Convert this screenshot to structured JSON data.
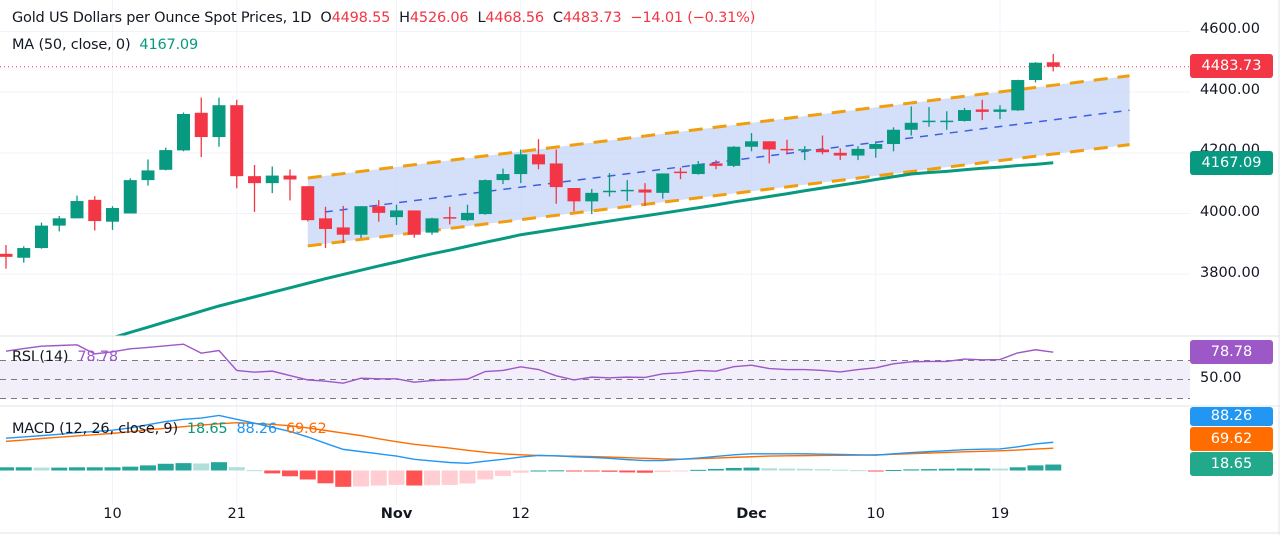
{
  "header": {
    "symbol_title": "Gold US Dollars per Ounce Spot Prices, 1D",
    "open_label": "O",
    "open": "4498.55",
    "high_label": "H",
    "high": "4526.06",
    "low_label": "L",
    "low": "4468.56",
    "close_label": "C",
    "close": "4483.73",
    "change": "−14.01 (−0.31%)",
    "ma_label": "MA (50, close, 0)",
    "ma_value": "4167.09"
  },
  "indicators": {
    "rsi_label": "RSI (14)",
    "rsi_value": "78.78",
    "macd_label": "MACD (12, 26, close, 9)",
    "macd_hist_value": "18.65",
    "macd_value": "88.26",
    "macd_signal_value": "69.62"
  },
  "price_axis": {
    "ticks": [
      "4600.00",
      "4400.00",
      "4200.00",
      "4000.00",
      "3800.00"
    ],
    "last_price": "4483.73",
    "ma_price": "4167.09",
    "rsi_ticks": [
      "50.00"
    ],
    "rsi_last": "78.78",
    "macd_last": "88.26",
    "signal_last": "69.62",
    "hist_last": "18.65"
  },
  "time_axis": {
    "ticks": [
      {
        "label": "10",
        "bar": 6,
        "bold": false
      },
      {
        "label": "21",
        "bar": 13,
        "bold": false
      },
      {
        "label": "Nov",
        "bar": 22,
        "bold": true
      },
      {
        "label": "12",
        "bar": 29,
        "bold": false
      },
      {
        "label": "Dec",
        "bar": 42,
        "bold": true
      },
      {
        "label": "10",
        "bar": 49,
        "bold": false
      },
      {
        "label": "19",
        "bar": 56,
        "bold": false
      }
    ]
  },
  "colors": {
    "up": "#089981",
    "down": "#f23645",
    "ma": "#089981",
    "rsi": "#9c58c7",
    "macd": "#2196f3",
    "signal": "#ff6d00",
    "channel_fill": "#c6d4f8",
    "channel_edge": "#f29d0c",
    "channel_mid": "#3d5fe0"
  },
  "chart_data": [
    {
      "type": "candlestick",
      "price_range": [
        3700,
        4650
      ],
      "grid": true,
      "ohlc": [
        [
          3867,
          3896,
          3818,
          3857
        ],
        [
          3854,
          3892,
          3838,
          3886
        ],
        [
          3886,
          3970,
          3884,
          3960
        ],
        [
          3960,
          3992,
          3941,
          3984
        ],
        [
          3984,
          4059,
          3984,
          4041
        ],
        [
          4045,
          4057,
          3944,
          3975
        ],
        [
          3973,
          4024,
          3946,
          4018
        ],
        [
          4000,
          4116,
          4000,
          4110
        ],
        [
          4110,
          4178,
          4092,
          4142
        ],
        [
          4144,
          4217,
          4142,
          4209
        ],
        [
          4208,
          4333,
          4205,
          4328
        ],
        [
          4332,
          4382,
          4186,
          4252
        ],
        [
          4252,
          4382,
          4220,
          4357
        ],
        [
          4357,
          4375,
          4083,
          4123
        ],
        [
          4123,
          4160,
          4005,
          4100
        ],
        [
          4100,
          4155,
          4067,
          4125
        ],
        [
          4125,
          4145,
          4043,
          4112
        ],
        [
          4090,
          4090,
          3974,
          3978
        ],
        [
          3984,
          4022,
          3886,
          3949
        ],
        [
          3954,
          4025,
          3903,
          3930
        ],
        [
          3930,
          4024,
          3919,
          4024
        ],
        [
          4024,
          4044,
          3973,
          4002
        ],
        [
          3988,
          4029,
          3962,
          4010
        ],
        [
          4010,
          4010,
          3920,
          3930
        ],
        [
          3937,
          3986,
          3930,
          3984
        ],
        [
          3988,
          4022,
          3964,
          3984
        ],
        [
          3978,
          4029,
          3975,
          4002
        ],
        [
          3998,
          4112,
          3996,
          4110
        ],
        [
          4110,
          4148,
          4097,
          4130
        ],
        [
          4130,
          4211,
          4100,
          4195
        ],
        [
          4195,
          4245,
          4146,
          4162
        ],
        [
          4165,
          4211,
          4032,
          4087
        ],
        [
          4084,
          4084,
          4007,
          4040
        ],
        [
          4040,
          4081,
          3998,
          4068
        ],
        [
          4070,
          4133,
          4056,
          4075
        ],
        [
          4076,
          4110,
          4041,
          4078
        ],
        [
          4079,
          4100,
          4025,
          4069
        ],
        [
          4068,
          4132,
          4049,
          4132
        ],
        [
          4138,
          4151,
          4113,
          4135
        ],
        [
          4130,
          4173,
          4128,
          4162
        ],
        [
          4165,
          4176,
          4146,
          4157
        ],
        [
          4157,
          4222,
          4153,
          4220
        ],
        [
          4220,
          4265,
          4205,
          4238
        ],
        [
          4238,
          4238,
          4165,
          4211
        ],
        [
          4213,
          4243,
          4195,
          4209
        ],
        [
          4208,
          4222,
          4176,
          4212
        ],
        [
          4211,
          4257,
          4195,
          4202
        ],
        [
          4200,
          4215,
          4176,
          4191
        ],
        [
          4191,
          4222,
          4176,
          4213
        ],
        [
          4213,
          4238,
          4184,
          4229
        ],
        [
          4229,
          4284,
          4205,
          4276
        ],
        [
          4276,
          4353,
          4257,
          4299
        ],
        [
          4303,
          4351,
          4286,
          4306
        ],
        [
          4303,
          4337,
          4276,
          4306
        ],
        [
          4305,
          4348,
          4303,
          4341
        ],
        [
          4343,
          4375,
          4308,
          4335
        ],
        [
          4335,
          4357,
          4311,
          4343
        ],
        [
          4340,
          4441,
          4338,
          4440
        ],
        [
          4440,
          4499,
          4432,
          4497
        ],
        [
          4498.55,
          4526.06,
          4468.56,
          4483.73
        ]
      ],
      "ma50": [
        null,
        null,
        null,
        null,
        null,
        null,
        3590,
        3608,
        3625,
        3643,
        3660,
        3678,
        3695,
        3710,
        3725,
        3740,
        3755,
        3770,
        3785,
        3799,
        3813,
        3827,
        3840,
        3854,
        3867,
        3879,
        3892,
        3905,
        3917,
        3930,
        3939,
        3948,
        3957,
        3966,
        3975,
        3984,
        3992,
        4001,
        4010,
        4019,
        4028,
        4038,
        4047,
        4056,
        4065,
        4075,
        4084,
        4093,
        4102,
        4112,
        4121,
        4130,
        4135,
        4139,
        4144,
        4149,
        4153,
        4158,
        4162,
        4167.09
      ],
      "channel": {
        "upper": [
          [
            17,
            4117
          ],
          [
            63.3,
            4454
          ]
        ],
        "lower": [
          [
            17,
            3893
          ],
          [
            63.3,
            4227
          ]
        ]
      }
    },
    {
      "type": "line",
      "indicator": "RSI",
      "range": [
        0,
        100
      ],
      "levels": [
        70,
        50,
        30
      ],
      "values": [
        79.8,
        82.6,
        85.1,
        85.8,
        86.5,
        77,
        79.1,
        82.3,
        83.7,
        85.5,
        87.2,
        77.7,
        80.5,
        59.5,
        57.7,
        58.8,
        54.2,
        49.6,
        48.2,
        46.1,
        51.4,
        50.7,
        50.7,
        47.2,
        48.9,
        49.6,
        50.4,
        58.4,
        59.5,
        63.3,
        60.5,
        53.9,
        49.6,
        52.5,
        51.8,
        52.5,
        52.2,
        56,
        57,
        59.5,
        58.8,
        63.5,
        65.1,
        61.5,
        60.5,
        60.5,
        59.5,
        58,
        60.5,
        62.3,
        66.5,
        68.6,
        69,
        69,
        71.5,
        70.7,
        71,
        78,
        81.3,
        78.78
      ]
    },
    {
      "type": "line+bar",
      "indicator": "MACD",
      "macd": [
        101,
        105,
        109,
        113,
        118,
        122,
        126,
        133,
        143,
        153,
        160,
        164,
        172,
        160,
        148,
        135,
        122,
        105,
        85,
        66,
        59,
        52,
        45,
        35,
        30,
        25,
        22.4,
        29,
        35,
        42,
        47,
        46,
        43,
        41,
        38,
        34,
        31,
        31,
        35,
        39,
        44,
        49,
        52,
        52,
        52,
        52,
        51,
        50,
        49,
        48,
        52,
        56,
        59,
        62,
        65,
        66.5,
        67.5,
        74,
        83,
        88.26
      ],
      "signal": [
        91,
        95,
        100,
        104,
        108,
        112,
        116,
        121,
        127,
        132,
        137,
        142,
        146,
        149.5,
        147,
        144,
        140,
        133,
        125,
        117,
        109,
        99,
        90,
        82,
        76,
        70,
        63,
        57,
        52,
        49,
        47,
        45.5,
        44.5,
        43.6,
        42,
        40,
        38,
        36,
        35.5,
        37,
        39,
        41,
        43,
        45,
        46,
        46.5,
        47,
        47.5,
        48,
        48.8,
        50.5,
        52.5,
        54.5,
        56.5,
        58.5,
        60,
        61.5,
        64,
        67,
        69.62
      ],
      "histogram": [
        10,
        10,
        9,
        9,
        10,
        10,
        10,
        12,
        16,
        21,
        23,
        22,
        26,
        10.5,
        1,
        -9,
        -18,
        -28,
        -40,
        -51,
        -50,
        -47,
        -45,
        -47,
        -46,
        -45,
        -40.6,
        -28,
        -17,
        -7,
        0,
        0.5,
        -1.5,
        -2.6,
        -4,
        -6,
        -7,
        -5,
        -0.5,
        2,
        5,
        8,
        9,
        7,
        6,
        5.5,
        4,
        2.5,
        1,
        -0.8,
        1.5,
        3.5,
        4.5,
        5.5,
        6.5,
        6.5,
        6,
        10,
        16,
        18.65
      ]
    }
  ]
}
